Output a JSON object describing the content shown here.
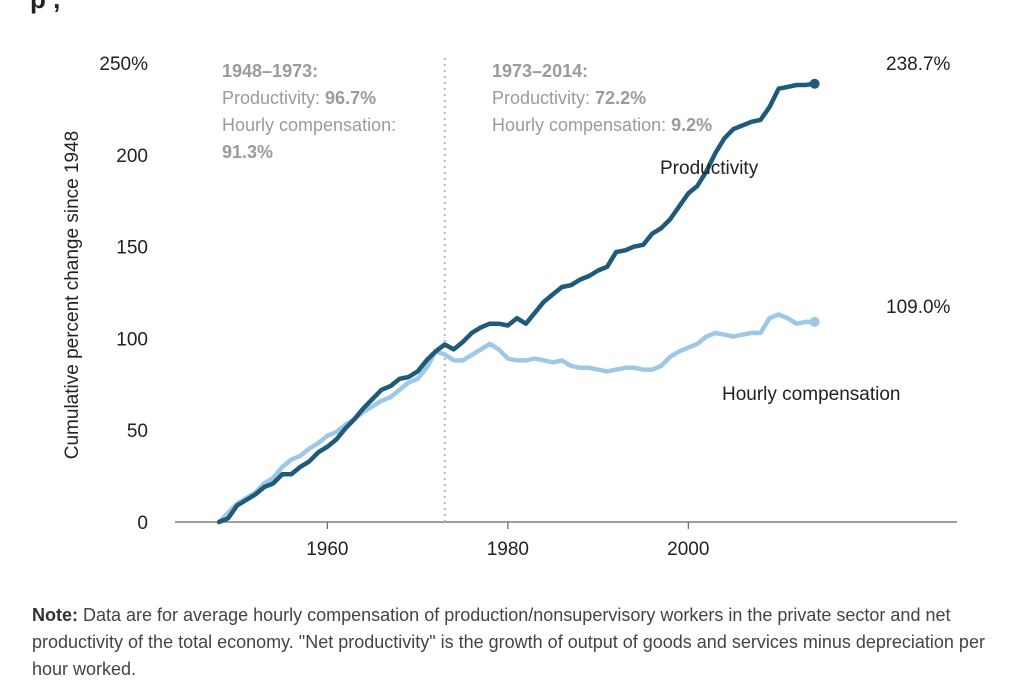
{
  "partial_title": "p                ,",
  "note": {
    "label": "Note:",
    "text": " Data are for average hourly compensation of production/nonsupervisory workers in the private sector and net productivity of the total economy. \"Net productivity\" is the growth of output of goods and services minus depreciation per hour worked."
  },
  "chart_data": {
    "type": "line",
    "ylabel": "Cumulative percent change since 1948",
    "xlim": [
      1944,
      2029
    ],
    "ylim": [
      0,
      250
    ],
    "y_ticks": [
      0,
      50,
      100,
      150,
      200,
      250
    ],
    "y_tick_labels": [
      "0",
      "50",
      "100",
      "150",
      "200",
      "250%"
    ],
    "x_ticks": [
      1960,
      1980,
      2000
    ],
    "x_tick_labels": [
      "1960",
      "1980",
      "2000"
    ],
    "divider_year": 1973,
    "annotations": {
      "left": {
        "period": "1948–1973:",
        "prod_label": "Productivity: ",
        "prod_value": "96.7%",
        "comp_label": "Hourly compensation:",
        "comp_value": "91.3%"
      },
      "right": {
        "period": "1973–2014:",
        "prod_label": "Productivity: ",
        "prod_value": "72.2%",
        "comp_label": "Hourly compensation: ",
        "comp_value": "9.2%"
      }
    },
    "series": [
      {
        "name": "Productivity",
        "color": "#1f5a7a",
        "end_label": "238.7%",
        "x": [
          1948,
          1949,
          1950,
          1951,
          1952,
          1953,
          1954,
          1955,
          1956,
          1957,
          1958,
          1959,
          1960,
          1961,
          1962,
          1963,
          1964,
          1965,
          1966,
          1967,
          1968,
          1969,
          1970,
          1971,
          1972,
          1973,
          1974,
          1975,
          1976,
          1977,
          1978,
          1979,
          1980,
          1981,
          1982,
          1983,
          1984,
          1985,
          1986,
          1987,
          1988,
          1989,
          1990,
          1991,
          1992,
          1993,
          1994,
          1995,
          1996,
          1997,
          1998,
          1999,
          2000,
          2001,
          2002,
          2003,
          2004,
          2005,
          2006,
          2007,
          2008,
          2009,
          2010,
          2011,
          2012,
          2013,
          2014
        ],
        "y": [
          0,
          2,
          9,
          12,
          15,
          19,
          21,
          26,
          26,
          30,
          33,
          38,
          41,
          45,
          51,
          56,
          62,
          67,
          72,
          74,
          78,
          79,
          82,
          88,
          93,
          96.7,
          94,
          98,
          103,
          106,
          108,
          108,
          107,
          111,
          108,
          114,
          120,
          124,
          128,
          129,
          132,
          134,
          137,
          139,
          147,
          148,
          150,
          151,
          157,
          160,
          165,
          172,
          179,
          183,
          191,
          201,
          209,
          214,
          216,
          218,
          219,
          226,
          236,
          237,
          238,
          238,
          238.7
        ]
      },
      {
        "name": "Hourly compensation",
        "color": "#9ec8e8",
        "end_label": "109.0%",
        "x": [
          1948,
          1949,
          1950,
          1951,
          1952,
          1953,
          1954,
          1955,
          1956,
          1957,
          1958,
          1959,
          1960,
          1961,
          1962,
          1963,
          1964,
          1965,
          1966,
          1967,
          1968,
          1969,
          1970,
          1971,
          1972,
          1973,
          1974,
          1975,
          1976,
          1977,
          1978,
          1979,
          1980,
          1981,
          1982,
          1983,
          1984,
          1985,
          1986,
          1987,
          1988,
          1989,
          1990,
          1991,
          1992,
          1993,
          1994,
          1995,
          1996,
          1997,
          1998,
          1999,
          2000,
          2001,
          2002,
          2003,
          2004,
          2005,
          2006,
          2007,
          2008,
          2009,
          2010,
          2011,
          2012,
          2013,
          2014
        ],
        "y": [
          0,
          5,
          10,
          13,
          16,
          21,
          24,
          30,
          34,
          36,
          40,
          43,
          47,
          49,
          53,
          56,
          60,
          63,
          66,
          68,
          72,
          76,
          78,
          84,
          93,
          91.3,
          88,
          88,
          91,
          94,
          97,
          94,
          89,
          88,
          88,
          89,
          88,
          87,
          88,
          85,
          84,
          84,
          83,
          82,
          83,
          84,
          84,
          83,
          83,
          85,
          90,
          93,
          95,
          97,
          101,
          103,
          102,
          101,
          102,
          103,
          103,
          111,
          113,
          111,
          108,
          109,
          109.0
        ]
      }
    ]
  }
}
